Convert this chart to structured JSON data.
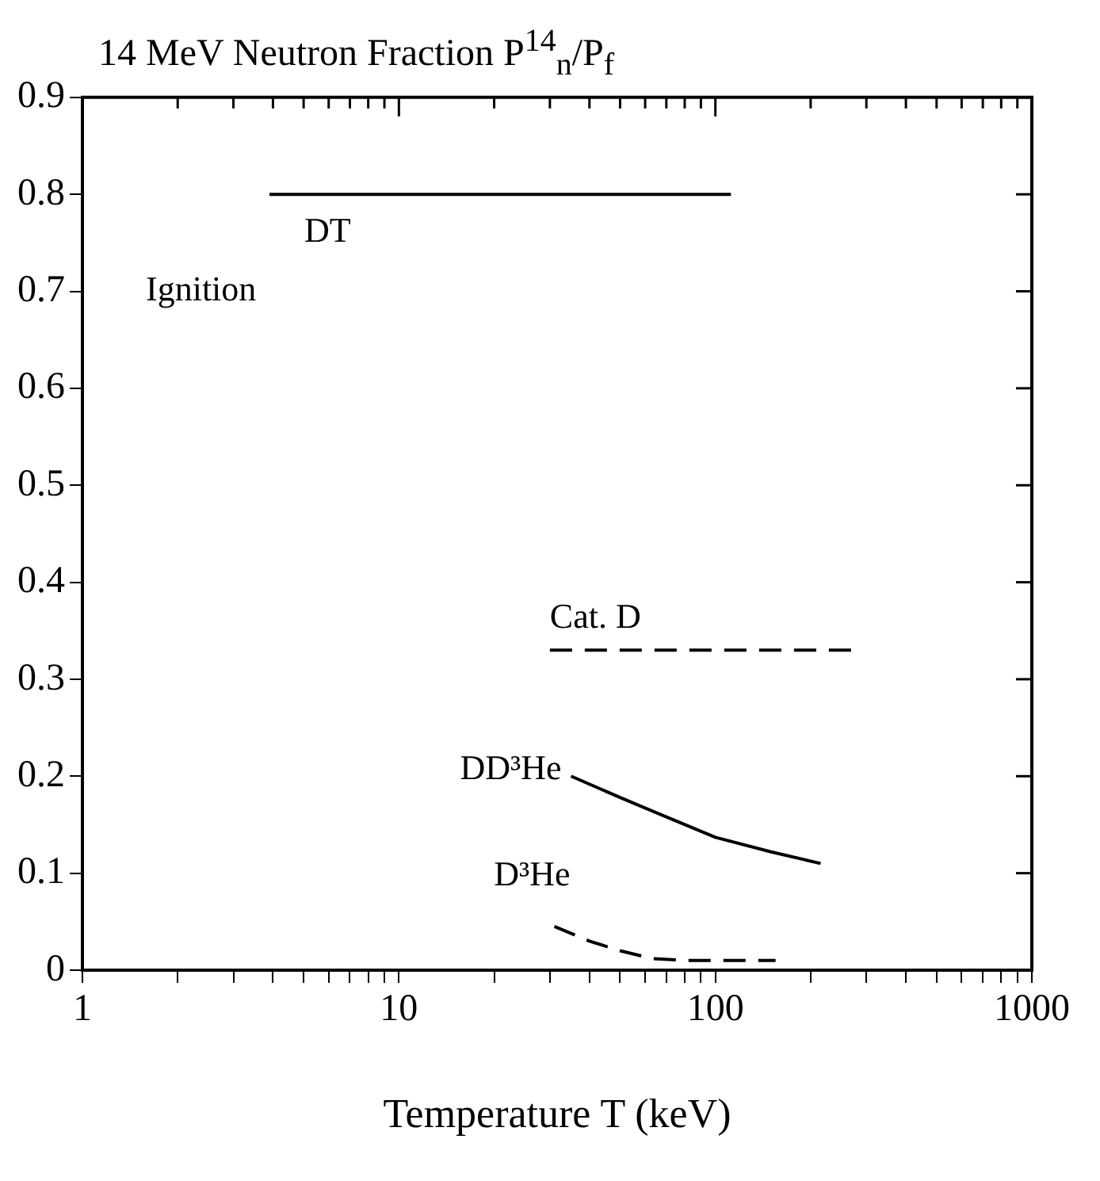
{
  "chart_data": {
    "type": "line",
    "title": "14 MeV Neutron Fraction P$^{14}$$_{n}$/P$_{f}$",
    "xlabel": "Temperature T (keV)",
    "log": "x",
    "xlim": [
      1,
      1000
    ],
    "ylim": [
      0,
      0.9
    ],
    "xticks": [
      1,
      {
        "value": 2,
        "label": null
      },
      {
        "value": 3,
        "label": null
      },
      {
        "value": 4,
        "label": null
      },
      {
        "value": 5,
        "label": null
      },
      {
        "value": 6,
        "label": null
      },
      {
        "value": 7,
        "label": null
      },
      {
        "value": 8,
        "label": null
      },
      {
        "value": 9,
        "label": null
      },
      10,
      {
        "value": 20,
        "label": null
      },
      {
        "value": 30,
        "label": null
      },
      {
        "value": 40,
        "label": null
      },
      {
        "value": 50,
        "label": null
      },
      {
        "value": 60,
        "label": null
      },
      {
        "value": 70,
        "label": null
      },
      {
        "value": 80,
        "label": null
      },
      {
        "value": 90,
        "label": null
      },
      100,
      {
        "value": 200,
        "label": null
      },
      {
        "value": 300,
        "label": null
      },
      {
        "value": 400,
        "label": null
      },
      {
        "value": 500,
        "label": null
      },
      {
        "value": 600,
        "label": null
      },
      {
        "value": 700,
        "label": null
      },
      {
        "value": 800,
        "label": null
      },
      {
        "value": 900,
        "label": null
      },
      1000
    ],
    "yticks": [
      0,
      0.1,
      0.2,
      0.3,
      0.4,
      0.5,
      0.6,
      0.7,
      0.8,
      0.9
    ],
    "grid": false,
    "legend": false,
    "marker": "none",
    "annotations": [
      "Ignition"
    ],
    "series": [
      {
        "name": "DT",
        "color": "#000000",
        "line_style": "solid",
        "x": [
          3.9,
          112
        ],
        "values": [
          0.8,
          0.8
        ]
      },
      {
        "name": "Cat. D",
        "color": "#000000",
        "line_style": "dashed",
        "x": [
          30,
          280
        ],
        "values": [
          0.33,
          0.33
        ]
      },
      {
        "name": "DD³He",
        "color": "#000000",
        "line_style": "solid",
        "x": [
          35,
          50,
          70,
          100,
          150,
          215
        ],
        "values": [
          0.2,
          0.178,
          0.158,
          0.137,
          0.122,
          0.11
        ]
      },
      {
        "name": "D³He",
        "color": "#000000",
        "line_style": "dashed",
        "x": [
          31,
          40,
          50,
          63,
          80,
          100,
          155
        ],
        "values": [
          0.045,
          0.03,
          0.02,
          0.012,
          0.01,
          0.01,
          0.01
        ]
      }
    ]
  }
}
